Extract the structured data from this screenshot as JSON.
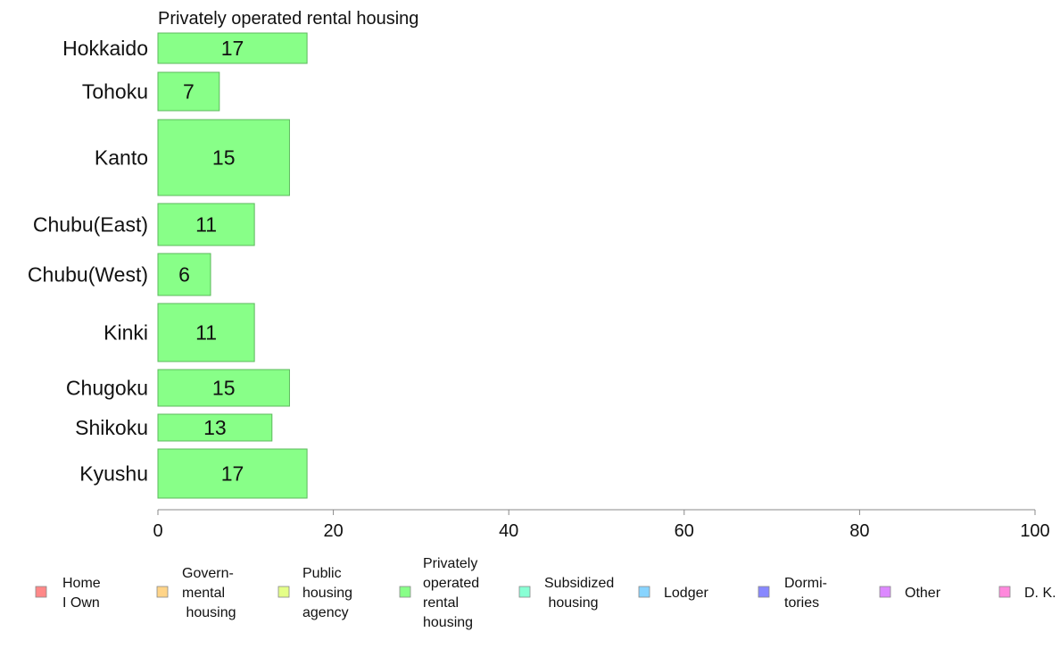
{
  "chart_data": {
    "type": "bar",
    "orientation": "horizontal",
    "title": "Privately operated rental housing",
    "categories": [
      "Hokkaido",
      "Tohoku",
      "Kanto",
      "Chubu(East)",
      "Chubu(West)",
      "Kinki",
      "Chugoku",
      "Shikoku",
      "Kyushu"
    ],
    "values": [
      17,
      7,
      15,
      11,
      6,
      11,
      15,
      13,
      17
    ],
    "value_labels": [
      "17",
      "7",
      "15",
      "11",
      "6",
      "11",
      "15",
      "13",
      "17"
    ],
    "xlim": [
      0,
      100
    ],
    "xticks": [
      0,
      20,
      40,
      60,
      80,
      100
    ],
    "xtick_labels": [
      "0",
      "20",
      "40",
      "60",
      "80",
      "100"
    ],
    "grid": false,
    "bar_color": "#88ff88",
    "bar_border_color": "#5cb85c",
    "legend_position": "bottom",
    "legend": [
      {
        "lines": [
          "Home",
          "I Own"
        ],
        "color": "#ff8888"
      },
      {
        "lines": [
          "Govern-",
          "mental",
          " housing"
        ],
        "color": "#ffd488"
      },
      {
        "lines": [
          "Public",
          "housing",
          "agency"
        ],
        "color": "#e4ff88"
      },
      {
        "lines": [
          "Privately",
          "operated",
          "rental",
          "housing"
        ],
        "color": "#88ff88"
      },
      {
        "lines": [
          "Subsidized",
          " housing"
        ],
        "color": "#88ffd4"
      },
      {
        "lines": [
          "Lodger"
        ],
        "color": "#88d4ff"
      },
      {
        "lines": [
          "Dormi-",
          "tories"
        ],
        "color": "#8888ff"
      },
      {
        "lines": [
          "Other"
        ],
        "color": "#dc88ff"
      },
      {
        "lines": [
          "D. K."
        ],
        "color": "#ff88dc"
      }
    ]
  }
}
